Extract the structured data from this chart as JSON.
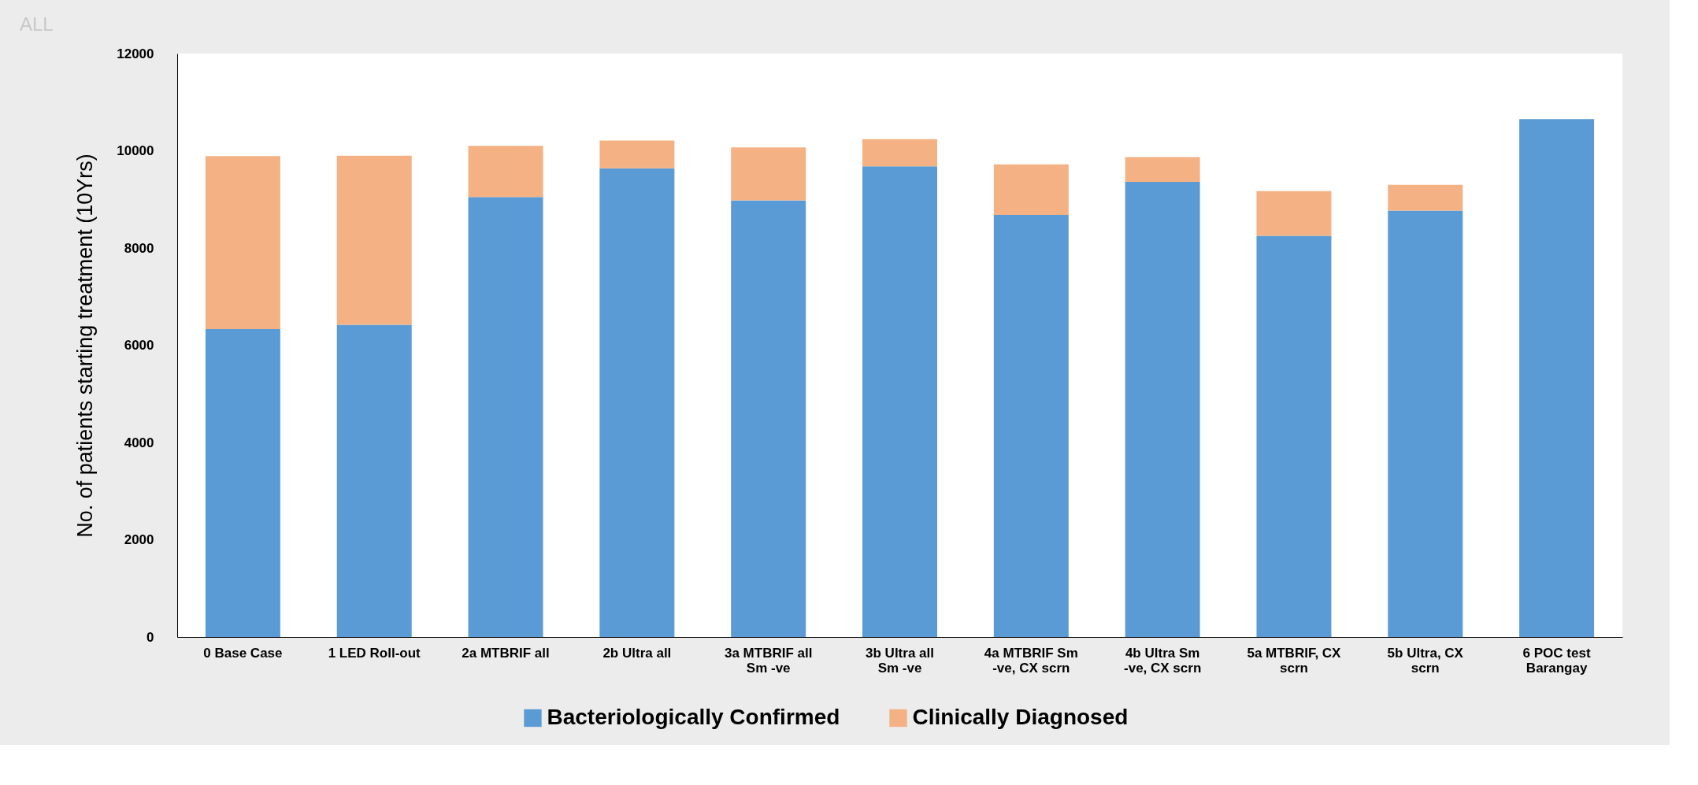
{
  "chart_data": {
    "type": "bar",
    "stacked": true,
    "ylabel": "No. of patients starting  treatment (10Yrs)",
    "annotations": [
      "ALL"
    ],
    "categories": [
      "0 Base Case",
      "1 LED Roll-out",
      "2a MTBRIF all",
      "2b Ultra all",
      "3a MTBRIF all Sm -ve",
      "3b Ultra all Sm -ve",
      "4a MTBRIF Sm -ve, CX scrn",
      "4b Ultra Sm -ve, CX scrn",
      "5a MTBRIF, CX scrn",
      "5b Ultra, CX scrn",
      "6 POC test Barangay"
    ],
    "series": [
      {
        "name": "Bacteriologically Confirmed",
        "color": "#5b9bd5",
        "values": [
          6330,
          6420,
          9050,
          9640,
          8980,
          9680,
          8680,
          9360,
          8250,
          8770,
          10650
        ]
      },
      {
        "name": "Clinically Diagnosed",
        "color": "#f4b183",
        "values": [
          3560,
          3480,
          1050,
          570,
          1090,
          560,
          1040,
          510,
          920,
          530,
          0
        ]
      }
    ],
    "ylim": [
      0,
      12000
    ],
    "yticks": [
      0,
      2000,
      4000,
      6000,
      8000,
      10000,
      12000
    ],
    "grid": false,
    "legend": "bottom"
  }
}
